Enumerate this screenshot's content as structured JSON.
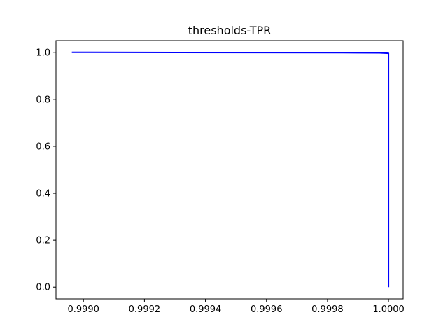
{
  "chart_data": {
    "type": "line",
    "title": "thresholds-TPR",
    "xlabel": "",
    "ylabel": "",
    "xlim": [
      0.99891,
      1.000048
    ],
    "ylim": [
      -0.05,
      1.05
    ],
    "xticks": [
      0.999,
      0.9992,
      0.9994,
      0.9996,
      0.9998,
      1.0
    ],
    "xtick_labels": [
      "0.9990",
      "0.9992",
      "0.9994",
      "0.9996",
      "0.9998",
      "1.0000"
    ],
    "yticks": [
      0.0,
      0.2,
      0.4,
      0.6,
      0.8,
      1.0
    ],
    "ytick_labels": [
      "0.0",
      "0.2",
      "0.4",
      "0.6",
      "0.8",
      "1.0"
    ],
    "grid": false,
    "series": [
      {
        "color": "#0000ff",
        "x": [
          0.998962,
          0.9993,
          0.9996,
          0.99985,
          0.99997,
          1.0,
          1.0
        ],
        "y": [
          1.0,
          0.9995,
          0.999,
          0.9985,
          0.998,
          0.996,
          0.0
        ]
      }
    ]
  }
}
